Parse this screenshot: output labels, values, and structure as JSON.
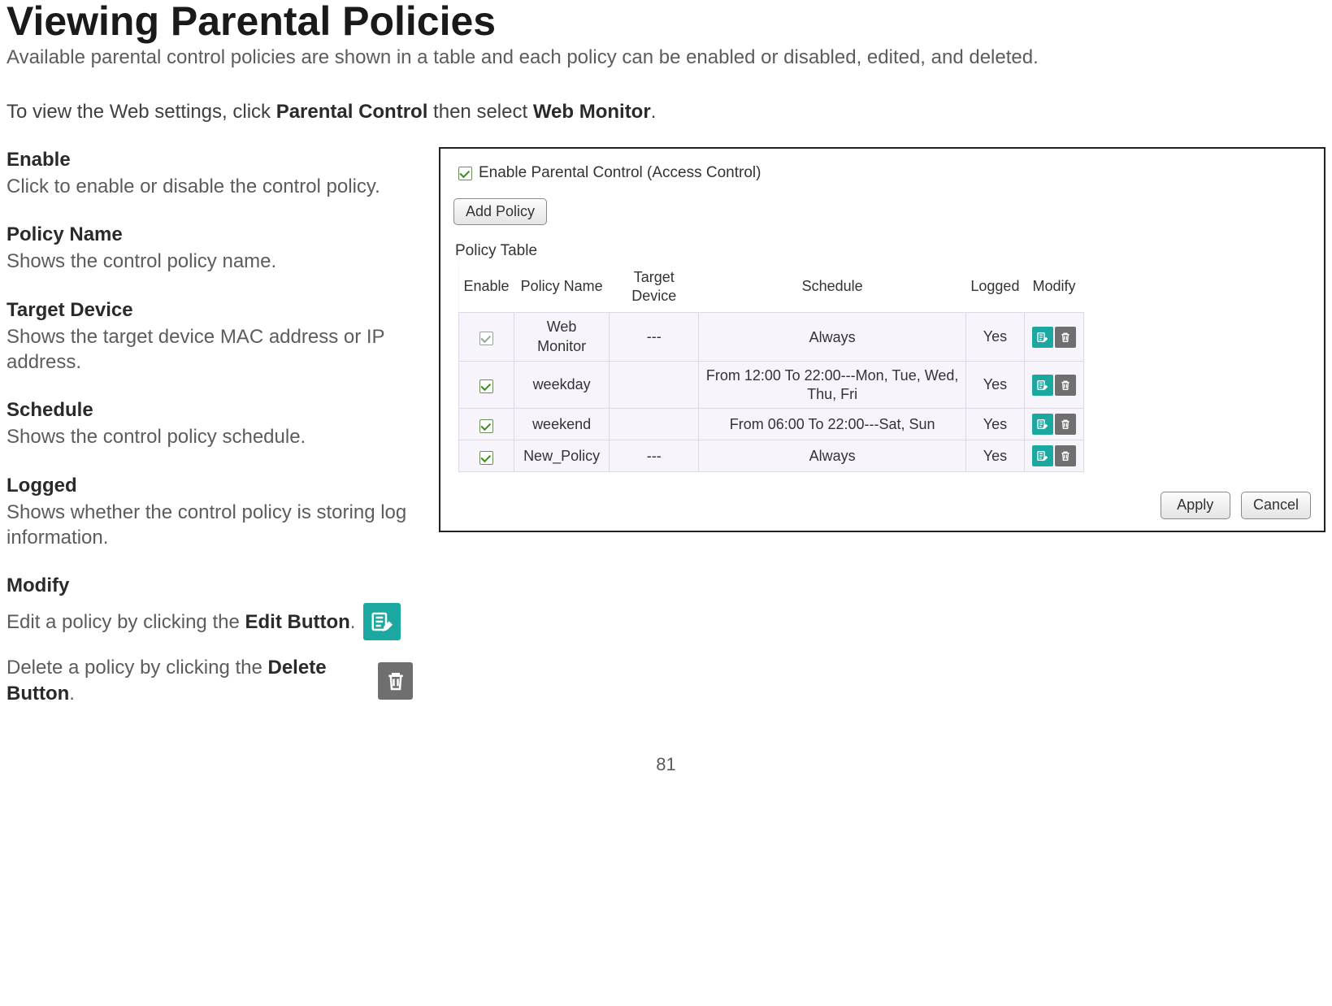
{
  "page": {
    "title": "Viewing Parental Policies",
    "intro": "Available parental control policies are shown in a table and each policy can be enabled or disabled, edited, and deleted.",
    "nav_prefix": "To view the Web settings, click ",
    "nav_link1": "Parental Control",
    "nav_mid": " then select ",
    "nav_link2": "Web Monitor",
    "nav_suffix": ".",
    "page_number": "81"
  },
  "defs": [
    {
      "label": "Enable",
      "desc": "Click to enable or disable the control policy."
    },
    {
      "label": "Policy Name",
      "desc": "Shows the control policy name."
    },
    {
      "label": "Target Device",
      "desc": "Shows the target device MAC address or IP address."
    },
    {
      "label": "Schedule",
      "desc": "Shows the control policy schedule."
    },
    {
      "label": "Logged",
      "desc": "Shows whether the control policy is storing log information."
    }
  ],
  "modify": {
    "label": "Modify",
    "edit_prefix": "Edit a policy by clicking the ",
    "edit_bold": "Edit Button",
    "edit_suffix": ".",
    "delete_prefix": "Delete a policy by clicking the ",
    "delete_bold": "Delete Button",
    "delete_suffix": "."
  },
  "panel": {
    "enable_label": "Enable Parental Control (Access Control)",
    "enable_checked": true,
    "add_policy_label": "Add Policy",
    "table_label": "Policy Table",
    "apply_label": "Apply",
    "cancel_label": "Cancel",
    "columns": [
      "Enable",
      "Policy Name",
      "Target Device",
      "Schedule",
      "Logged",
      "Modify"
    ],
    "rows": [
      {
        "enabled": true,
        "enabled_disabled": true,
        "name": "Web Monitor",
        "device": "---",
        "schedule": "Always",
        "logged": "Yes"
      },
      {
        "enabled": true,
        "enabled_disabled": false,
        "name": "weekday",
        "device": "",
        "schedule": "From 12:00 To 22:00---Mon, Tue, Wed, Thu, Fri",
        "logged": "Yes"
      },
      {
        "enabled": true,
        "enabled_disabled": false,
        "name": "weekend",
        "device": "",
        "schedule": "From 06:00 To 22:00---Sat, Sun",
        "logged": "Yes"
      },
      {
        "enabled": true,
        "enabled_disabled": false,
        "name": "New_Policy",
        "device": "---",
        "schedule": "Always",
        "logged": "Yes"
      }
    ]
  },
  "colors": {
    "edit_icon_bg": "#1aa8a0",
    "delete_icon_bg": "#6f6f6f",
    "check_green": "#3a8a20"
  }
}
